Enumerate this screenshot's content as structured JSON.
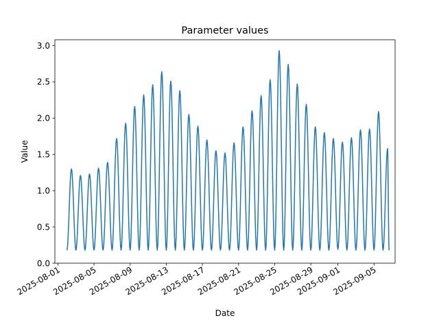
{
  "chart_data": {
    "type": "line",
    "title": "Parameter values",
    "xlabel": "Date",
    "ylabel": "Value",
    "x_axis_type": "date",
    "xlim": [
      "2025-07-31T16:00",
      "2025-09-07T08:00"
    ],
    "ylim": [
      0,
      3.08
    ],
    "x_ticks": [
      "2025-08-01",
      "2025-08-05",
      "2025-08-09",
      "2025-08-13",
      "2025-08-17",
      "2025-08-21",
      "2025-08-25",
      "2025-08-29",
      "2025-09-01",
      "2025-09-05"
    ],
    "y_ticks": [
      "0.0",
      "0.5",
      "1.0",
      "1.5",
      "2.0",
      "2.5",
      "3.0"
    ],
    "series_color": "#1f77b4",
    "grid": false,
    "legend": false,
    "series": [
      {
        "sampling": "daily peaks and troughs",
        "peaks": [
          {
            "date": "2025-08-02T12:00",
            "value": 1.3
          },
          {
            "date": "2025-08-03T12:00",
            "value": 1.21
          },
          {
            "date": "2025-08-04T12:00",
            "value": 1.23
          },
          {
            "date": "2025-08-05T12:00",
            "value": 1.31
          },
          {
            "date": "2025-08-06T12:00",
            "value": 1.39
          },
          {
            "date": "2025-08-07T12:00",
            "value": 1.72
          },
          {
            "date": "2025-08-08T12:00",
            "value": 1.93
          },
          {
            "date": "2025-08-09T12:00",
            "value": 2.16
          },
          {
            "date": "2025-08-10T12:00",
            "value": 2.32
          },
          {
            "date": "2025-08-11T12:00",
            "value": 2.46
          },
          {
            "date": "2025-08-12T12:00",
            "value": 2.64
          },
          {
            "date": "2025-08-13T12:00",
            "value": 2.51
          },
          {
            "date": "2025-08-14T12:00",
            "value": 2.38
          },
          {
            "date": "2025-08-15T12:00",
            "value": 2.05
          },
          {
            "date": "2025-08-16T12:00",
            "value": 1.89
          },
          {
            "date": "2025-08-17T12:00",
            "value": 1.7
          },
          {
            "date": "2025-08-18T12:00",
            "value": 1.55
          },
          {
            "date": "2025-08-19T12:00",
            "value": 1.52
          },
          {
            "date": "2025-08-20T12:00",
            "value": 1.66
          },
          {
            "date": "2025-08-21T12:00",
            "value": 1.88
          },
          {
            "date": "2025-08-22T12:00",
            "value": 2.1
          },
          {
            "date": "2025-08-23T12:00",
            "value": 2.31
          },
          {
            "date": "2025-08-24T12:00",
            "value": 2.53
          },
          {
            "date": "2025-08-25T12:00",
            "value": 2.93
          },
          {
            "date": "2025-08-26T12:00",
            "value": 2.74
          },
          {
            "date": "2025-08-27T12:00",
            "value": 2.47
          },
          {
            "date": "2025-08-28T12:00",
            "value": 2.19
          },
          {
            "date": "2025-08-29T12:00",
            "value": 1.88
          },
          {
            "date": "2025-08-30T12:00",
            "value": 1.8
          },
          {
            "date": "2025-08-31T12:00",
            "value": 1.72
          },
          {
            "date": "2025-09-01T12:00",
            "value": 1.67
          },
          {
            "date": "2025-09-02T12:00",
            "value": 1.73
          },
          {
            "date": "2025-09-03T12:00",
            "value": 1.84
          },
          {
            "date": "2025-09-04T12:00",
            "value": 1.85
          },
          {
            "date": "2025-09-05T12:00",
            "value": 2.09
          },
          {
            "date": "2025-09-06T12:00",
            "value": 1.58
          }
        ],
        "troughs": [
          {
            "date": "2025-08-02T00:00",
            "value": 0.18
          },
          {
            "date": "2025-08-03T00:00",
            "value": 0.18
          },
          {
            "date": "2025-08-04T00:00",
            "value": 0.18
          },
          {
            "date": "2025-08-05T00:00",
            "value": 0.18
          },
          {
            "date": "2025-08-06T00:00",
            "value": 0.18
          },
          {
            "date": "2025-08-07T00:00",
            "value": 0.18
          },
          {
            "date": "2025-08-08T00:00",
            "value": 0.18
          },
          {
            "date": "2025-08-09T00:00",
            "value": 0.18
          },
          {
            "date": "2025-08-10T00:00",
            "value": 0.18
          },
          {
            "date": "2025-08-11T00:00",
            "value": 0.18
          },
          {
            "date": "2025-08-12T00:00",
            "value": 0.18
          },
          {
            "date": "2025-08-13T00:00",
            "value": 0.18
          },
          {
            "date": "2025-08-14T00:00",
            "value": 0.18
          },
          {
            "date": "2025-08-15T00:00",
            "value": 0.18
          },
          {
            "date": "2025-08-16T00:00",
            "value": 0.18
          },
          {
            "date": "2025-08-17T00:00",
            "value": 0.18
          },
          {
            "date": "2025-08-18T00:00",
            "value": 0.18
          },
          {
            "date": "2025-08-19T00:00",
            "value": 0.18
          },
          {
            "date": "2025-08-20T00:00",
            "value": 0.18
          },
          {
            "date": "2025-08-21T00:00",
            "value": 0.18
          },
          {
            "date": "2025-08-22T00:00",
            "value": 0.18
          },
          {
            "date": "2025-08-23T00:00",
            "value": 0.18
          },
          {
            "date": "2025-08-24T00:00",
            "value": 0.18
          },
          {
            "date": "2025-08-25T00:00",
            "value": 0.18
          },
          {
            "date": "2025-08-26T00:00",
            "value": 0.18
          },
          {
            "date": "2025-08-27T00:00",
            "value": 0.18
          },
          {
            "date": "2025-08-28T00:00",
            "value": 0.18
          },
          {
            "date": "2025-08-29T00:00",
            "value": 0.18
          },
          {
            "date": "2025-08-30T00:00",
            "value": 0.18
          },
          {
            "date": "2025-08-31T00:00",
            "value": 0.18
          },
          {
            "date": "2025-09-01T00:00",
            "value": 0.19
          },
          {
            "date": "2025-09-02T00:00",
            "value": 0.18
          },
          {
            "date": "2025-09-03T00:00",
            "value": 0.18
          },
          {
            "date": "2025-09-04T00:00",
            "value": 0.18
          },
          {
            "date": "2025-09-05T00:00",
            "value": 0.18
          },
          {
            "date": "2025-09-06T00:00",
            "value": 0.18
          },
          {
            "date": "2025-09-06T16:00",
            "value": 0.18
          }
        ]
      }
    ]
  }
}
